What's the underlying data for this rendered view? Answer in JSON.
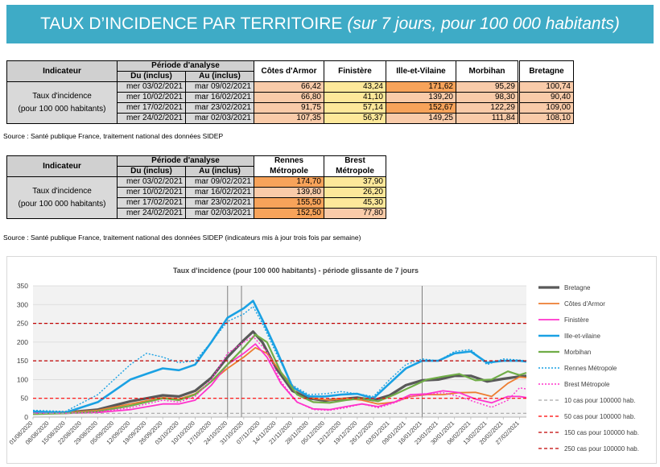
{
  "banner": {
    "title": "TAUX D’INCIDENCE PAR TERRITOIRE",
    "subtitle": "(sur 7 jours, pour 100 000 habitants)"
  },
  "table1": {
    "h_indicateur": "Indicateur",
    "h_periode": "Période d'analyse",
    "h_du": "Du (inclus)",
    "h_au": "Au (inclus)",
    "cols": [
      "Côtes d'Armor",
      "Finistère",
      "Ille-et-Vilaine",
      "Morbihan",
      "Bretagne"
    ],
    "label_line1": "Taux d'incidence",
    "label_line2": "(pour 100 000 habitants)",
    "rows": [
      {
        "du": "mer 03/02/2021",
        "au": "mar 09/02/2021",
        "values": [
          "66,42",
          "43,24",
          "171,62",
          "95,29",
          "100,74"
        ]
      },
      {
        "du": "mer 10/02/2021",
        "au": "mar 16/02/2021",
        "values": [
          "66,80",
          "41,10",
          "139,20",
          "98,30",
          "90,40"
        ]
      },
      {
        "du": "mer 17/02/2021",
        "au": "mar 23/02/2021",
        "values": [
          "91,75",
          "57,14",
          "152,67",
          "122,29",
          "109,00"
        ]
      },
      {
        "du": "mer 24/02/2021",
        "au": "mar 02/03/2021",
        "values": [
          "107,35",
          "56,37",
          "149,25",
          "111,84",
          "108,10"
        ]
      }
    ],
    "cell_colors": [
      [
        "#f9cba9",
        "#fde89a",
        "#f7a35a",
        "#f9cba9",
        "#f9cba9"
      ],
      [
        "#f9cba9",
        "#fde89a",
        "#f9cba9",
        "#f9cba9",
        "#f9cba9"
      ],
      [
        "#f9cba9",
        "#fde89a",
        "#f7a35a",
        "#f9cba9",
        "#f9cba9"
      ],
      [
        "#f9cba9",
        "#fde89a",
        "#f9cba9",
        "#f9cba9",
        "#f9cba9"
      ]
    ],
    "source": "Source  : Santé publique France, traitement national des données SIDEP"
  },
  "table2": {
    "h_indicateur": "Indicateur",
    "h_periode": "Période d'analyse",
    "h_du": "Du (inclus)",
    "h_au": "Au (inclus)",
    "col1_line1": "Rennes",
    "col1_line2": "Métropole",
    "col2_line1": "Brest",
    "col2_line2": "Métropole",
    "label_line1": "Taux d'incidence",
    "label_line2": "(pour 100 000 habitants)",
    "rows": [
      {
        "du": "mer 03/02/2021",
        "au": "mar 09/02/2021",
        "values": [
          "174,70",
          "37,90"
        ]
      },
      {
        "du": "mer 10/02/2021",
        "au": "mar 16/02/2021",
        "values": [
          "139,80",
          "26,20"
        ]
      },
      {
        "du": "mer 17/02/2021",
        "au": "mar 23/02/2021",
        "values": [
          "155,50",
          "45,30"
        ]
      },
      {
        "du": "mer 24/02/2021",
        "au": "mar 02/03/2021",
        "values": [
          "152,50",
          "77,80"
        ]
      }
    ],
    "cell_colors": [
      [
        "#f7a35a",
        "#fde89a"
      ],
      [
        "#f9cba9",
        "#fde89a"
      ],
      [
        "#f7a35a",
        "#fde89a"
      ],
      [
        "#f7a35a",
        "#f9cba9"
      ]
    ],
    "source": "Source  : Santé publique France, traitement national des données SIDEP (indicateurs mis à jour trois fois par semaine)"
  },
  "chart_data": {
    "type": "line",
    "title": "Taux d'incidence (pour 100 000 habitants) - période glissante de 7 jours",
    "ylim": [
      0,
      350
    ],
    "yticks": [
      0,
      50,
      100,
      150,
      200,
      250,
      300,
      350
    ],
    "x_start": "2020-08-01",
    "x_end": "2021-03-02",
    "xticks": [
      "01/08/2020",
      "08/08/2020",
      "15/08/2020",
      "22/08/2020",
      "29/08/2020",
      "05/09/2020",
      "12/09/2020",
      "19/09/2020",
      "26/09/2020",
      "03/10/2020",
      "10/10/2020",
      "17/10/2020",
      "24/10/2020",
      "31/10/2020",
      "07/11/2020",
      "14/11/2020",
      "21/11/2020",
      "28/11/2020",
      "05/12/2020",
      "12/12/2020",
      "19/12/2020",
      "26/12/2020",
      "02/01/2021",
      "09/01/2021",
      "16/01/2021",
      "23/01/2021",
      "30/01/2021",
      "06/02/2021",
      "13/02/2021",
      "20/02/2021",
      "27/02/2021"
    ],
    "vlines": [
      "2020-10-24",
      "2020-10-30",
      "2021-01-16"
    ],
    "grid": "horizontal",
    "legend_position": "right",
    "series": [
      {
        "name": "Bretagne",
        "color": "#595959",
        "dash": "",
        "width": 3.2,
        "points": [
          [
            "2020-08-01",
            12
          ],
          [
            "2020-08-15",
            12
          ],
          [
            "2020-08-29",
            20
          ],
          [
            "2020-09-12",
            42
          ],
          [
            "2020-09-26",
            58
          ],
          [
            "2020-10-03",
            55
          ],
          [
            "2020-10-10",
            70
          ],
          [
            "2020-10-17",
            105
          ],
          [
            "2020-10-24",
            160
          ],
          [
            "2020-10-31",
            205
          ],
          [
            "2020-11-04",
            228
          ],
          [
            "2020-11-08",
            200
          ],
          [
            "2020-11-14",
            130
          ],
          [
            "2020-11-21",
            70
          ],
          [
            "2020-11-28",
            50
          ],
          [
            "2020-12-05",
            44
          ],
          [
            "2020-12-12",
            48
          ],
          [
            "2020-12-19",
            52
          ],
          [
            "2020-12-26",
            45
          ],
          [
            "2021-01-02",
            58
          ],
          [
            "2021-01-09",
            85
          ],
          [
            "2021-01-16",
            98
          ],
          [
            "2021-01-23",
            100
          ],
          [
            "2021-01-30",
            110
          ],
          [
            "2021-02-06",
            110
          ],
          [
            "2021-02-13",
            95
          ],
          [
            "2021-02-20",
            102
          ],
          [
            "2021-02-27",
            108
          ],
          [
            "2021-03-02",
            110
          ]
        ]
      },
      {
        "name": "Côtes d'Armor",
        "color": "#ed7d31",
        "dash": "",
        "width": 1.8,
        "points": [
          [
            "2020-08-01",
            10
          ],
          [
            "2020-08-15",
            12
          ],
          [
            "2020-08-29",
            18
          ],
          [
            "2020-09-12",
            35
          ],
          [
            "2020-09-26",
            52
          ],
          [
            "2020-10-03",
            48
          ],
          [
            "2020-10-10",
            62
          ],
          [
            "2020-10-17",
            95
          ],
          [
            "2020-10-24",
            130
          ],
          [
            "2020-10-31",
            160
          ],
          [
            "2020-11-05",
            185
          ],
          [
            "2020-11-10",
            170
          ],
          [
            "2020-11-16",
            120
          ],
          [
            "2020-11-23",
            70
          ],
          [
            "2020-11-30",
            50
          ],
          [
            "2020-12-07",
            45
          ],
          [
            "2020-12-14",
            50
          ],
          [
            "2020-12-21",
            45
          ],
          [
            "2020-12-28",
            35
          ],
          [
            "2021-01-04",
            40
          ],
          [
            "2021-01-11",
            55
          ],
          [
            "2021-01-18",
            60
          ],
          [
            "2021-01-25",
            60
          ],
          [
            "2021-02-01",
            65
          ],
          [
            "2021-02-08",
            66
          ],
          [
            "2021-02-15",
            55
          ],
          [
            "2021-02-22",
            90
          ],
          [
            "2021-02-27",
            107
          ],
          [
            "2021-03-02",
            105
          ]
        ]
      },
      {
        "name": "Finistère",
        "color": "#ff33cc",
        "dash": "",
        "width": 1.8,
        "points": [
          [
            "2020-08-01",
            10
          ],
          [
            "2020-08-15",
            10
          ],
          [
            "2020-08-29",
            12
          ],
          [
            "2020-09-12",
            20
          ],
          [
            "2020-09-26",
            35
          ],
          [
            "2020-10-03",
            35
          ],
          [
            "2020-10-10",
            45
          ],
          [
            "2020-10-17",
            85
          ],
          [
            "2020-10-24",
            140
          ],
          [
            "2020-10-31",
            170
          ],
          [
            "2020-11-05",
            195
          ],
          [
            "2020-11-10",
            160
          ],
          [
            "2020-11-16",
            90
          ],
          [
            "2020-11-23",
            40
          ],
          [
            "2020-11-30",
            22
          ],
          [
            "2020-12-07",
            20
          ],
          [
            "2020-12-14",
            28
          ],
          [
            "2020-12-21",
            35
          ],
          [
            "2020-12-28",
            28
          ],
          [
            "2021-01-04",
            40
          ],
          [
            "2021-01-11",
            60
          ],
          [
            "2021-01-18",
            62
          ],
          [
            "2021-01-25",
            70
          ],
          [
            "2021-02-01",
            65
          ],
          [
            "2021-02-08",
            48
          ],
          [
            "2021-02-15",
            38
          ],
          [
            "2021-02-22",
            55
          ],
          [
            "2021-02-27",
            55
          ],
          [
            "2021-03-02",
            52
          ]
        ]
      },
      {
        "name": "Ille-et-vilaine",
        "color": "#1aa1e3",
        "dash": "",
        "width": 2.6,
        "points": [
          [
            "2020-08-01",
            15
          ],
          [
            "2020-08-15",
            12
          ],
          [
            "2020-08-29",
            40
          ],
          [
            "2020-09-05",
            70
          ],
          [
            "2020-09-12",
            100
          ],
          [
            "2020-09-19",
            115
          ],
          [
            "2020-09-26",
            130
          ],
          [
            "2020-10-03",
            125
          ],
          [
            "2020-10-10",
            140
          ],
          [
            "2020-10-17",
            200
          ],
          [
            "2020-10-24",
            265
          ],
          [
            "2020-10-31",
            290
          ],
          [
            "2020-11-04",
            310
          ],
          [
            "2020-11-08",
            260
          ],
          [
            "2020-11-14",
            180
          ],
          [
            "2020-11-21",
            80
          ],
          [
            "2020-11-28",
            55
          ],
          [
            "2020-12-05",
            55
          ],
          [
            "2020-12-12",
            60
          ],
          [
            "2020-12-19",
            62
          ],
          [
            "2020-12-26",
            50
          ],
          [
            "2021-01-02",
            90
          ],
          [
            "2021-01-09",
            130
          ],
          [
            "2021-01-16",
            150
          ],
          [
            "2021-01-23",
            150
          ],
          [
            "2021-01-30",
            170
          ],
          [
            "2021-02-06",
            175
          ],
          [
            "2021-02-13",
            145
          ],
          [
            "2021-02-20",
            150
          ],
          [
            "2021-02-27",
            150
          ],
          [
            "2021-03-02",
            148
          ]
        ]
      },
      {
        "name": "Morbihan",
        "color": "#70ad47",
        "dash": "",
        "width": 2.2,
        "points": [
          [
            "2020-08-01",
            8
          ],
          [
            "2020-08-15",
            10
          ],
          [
            "2020-08-29",
            15
          ],
          [
            "2020-09-12",
            30
          ],
          [
            "2020-09-26",
            50
          ],
          [
            "2020-10-03",
            45
          ],
          [
            "2020-10-10",
            60
          ],
          [
            "2020-10-17",
            95
          ],
          [
            "2020-10-24",
            140
          ],
          [
            "2020-10-31",
            185
          ],
          [
            "2020-11-05",
            220
          ],
          [
            "2020-11-10",
            200
          ],
          [
            "2020-11-16",
            120
          ],
          [
            "2020-11-23",
            60
          ],
          [
            "2020-11-30",
            40
          ],
          [
            "2020-12-07",
            38
          ],
          [
            "2020-12-14",
            45
          ],
          [
            "2020-12-21",
            50
          ],
          [
            "2020-12-28",
            42
          ],
          [
            "2021-01-04",
            60
          ],
          [
            "2021-01-11",
            80
          ],
          [
            "2021-01-18",
            100
          ],
          [
            "2021-01-25",
            108
          ],
          [
            "2021-02-01",
            115
          ],
          [
            "2021-02-08",
            98
          ],
          [
            "2021-02-15",
            100
          ],
          [
            "2021-02-22",
            122
          ],
          [
            "2021-02-27",
            112
          ],
          [
            "2021-03-02",
            118
          ]
        ]
      },
      {
        "name": "Rennes Métropole",
        "color": "#1aa1e3",
        "dash": "2,2",
        "width": 1.4,
        "points": [
          [
            "2020-08-01",
            18
          ],
          [
            "2020-08-15",
            15
          ],
          [
            "2020-08-29",
            60
          ],
          [
            "2020-09-05",
            100
          ],
          [
            "2020-09-12",
            140
          ],
          [
            "2020-09-19",
            170
          ],
          [
            "2020-09-26",
            160
          ],
          [
            "2020-10-03",
            145
          ],
          [
            "2020-10-10",
            150
          ],
          [
            "2020-10-17",
            200
          ],
          [
            "2020-10-24",
            255
          ],
          [
            "2020-10-31",
            275
          ],
          [
            "2020-11-04",
            295
          ],
          [
            "2020-11-08",
            250
          ],
          [
            "2020-11-14",
            170
          ],
          [
            "2020-11-21",
            85
          ],
          [
            "2020-11-28",
            60
          ],
          [
            "2020-12-05",
            62
          ],
          [
            "2020-12-12",
            68
          ],
          [
            "2020-12-19",
            62
          ],
          [
            "2020-12-26",
            55
          ],
          [
            "2021-01-02",
            100
          ],
          [
            "2021-01-09",
            140
          ],
          [
            "2021-01-16",
            155
          ],
          [
            "2021-01-23",
            150
          ],
          [
            "2021-01-30",
            175
          ],
          [
            "2021-02-06",
            180
          ],
          [
            "2021-02-13",
            140
          ],
          [
            "2021-02-20",
            155
          ],
          [
            "2021-02-27",
            152
          ],
          [
            "2021-03-02",
            150
          ]
        ]
      },
      {
        "name": "Brest Métropole",
        "color": "#ff33cc",
        "dash": "2,2",
        "width": 1.4,
        "points": [
          [
            "2020-08-01",
            10
          ],
          [
            "2020-08-15",
            10
          ],
          [
            "2020-08-29",
            14
          ],
          [
            "2020-09-12",
            25
          ],
          [
            "2020-09-26",
            45
          ],
          [
            "2020-10-03",
            40
          ],
          [
            "2020-10-10",
            55
          ],
          [
            "2020-10-17",
            100
          ],
          [
            "2020-10-24",
            170
          ],
          [
            "2020-10-31",
            200
          ],
          [
            "2020-11-04",
            215
          ],
          [
            "2020-11-10",
            175
          ],
          [
            "2020-11-16",
            95
          ],
          [
            "2020-11-23",
            40
          ],
          [
            "2020-11-30",
            20
          ],
          [
            "2020-12-07",
            18
          ],
          [
            "2020-12-14",
            25
          ],
          [
            "2020-12-21",
            35
          ],
          [
            "2020-12-28",
            25
          ],
          [
            "2021-01-04",
            38
          ],
          [
            "2021-01-11",
            55
          ],
          [
            "2021-01-18",
            60
          ],
          [
            "2021-01-25",
            65
          ],
          [
            "2021-02-01",
            55
          ],
          [
            "2021-02-08",
            40
          ],
          [
            "2021-02-15",
            26
          ],
          [
            "2021-02-22",
            45
          ],
          [
            "2021-02-27",
            78
          ],
          [
            "2021-03-02",
            75
          ]
        ]
      },
      {
        "name": "10 cas pour 100000 hab.",
        "color": "#a6a6a6",
        "dash": "4,3",
        "width": 1.2,
        "constant": 10
      },
      {
        "name": "50 cas pour 100000 hab.",
        "color": "#ff0000",
        "dash": "4,3",
        "width": 1.2,
        "constant": 50
      },
      {
        "name": "150 cas pour 100000 hab.",
        "color": "#c00000",
        "dash": "4,3",
        "width": 1.2,
        "constant": 150
      },
      {
        "name": "250 cas pour 100000 hab.",
        "color": "#c00000",
        "dash": "4,3",
        "width": 1.2,
        "constant": 250
      }
    ]
  }
}
